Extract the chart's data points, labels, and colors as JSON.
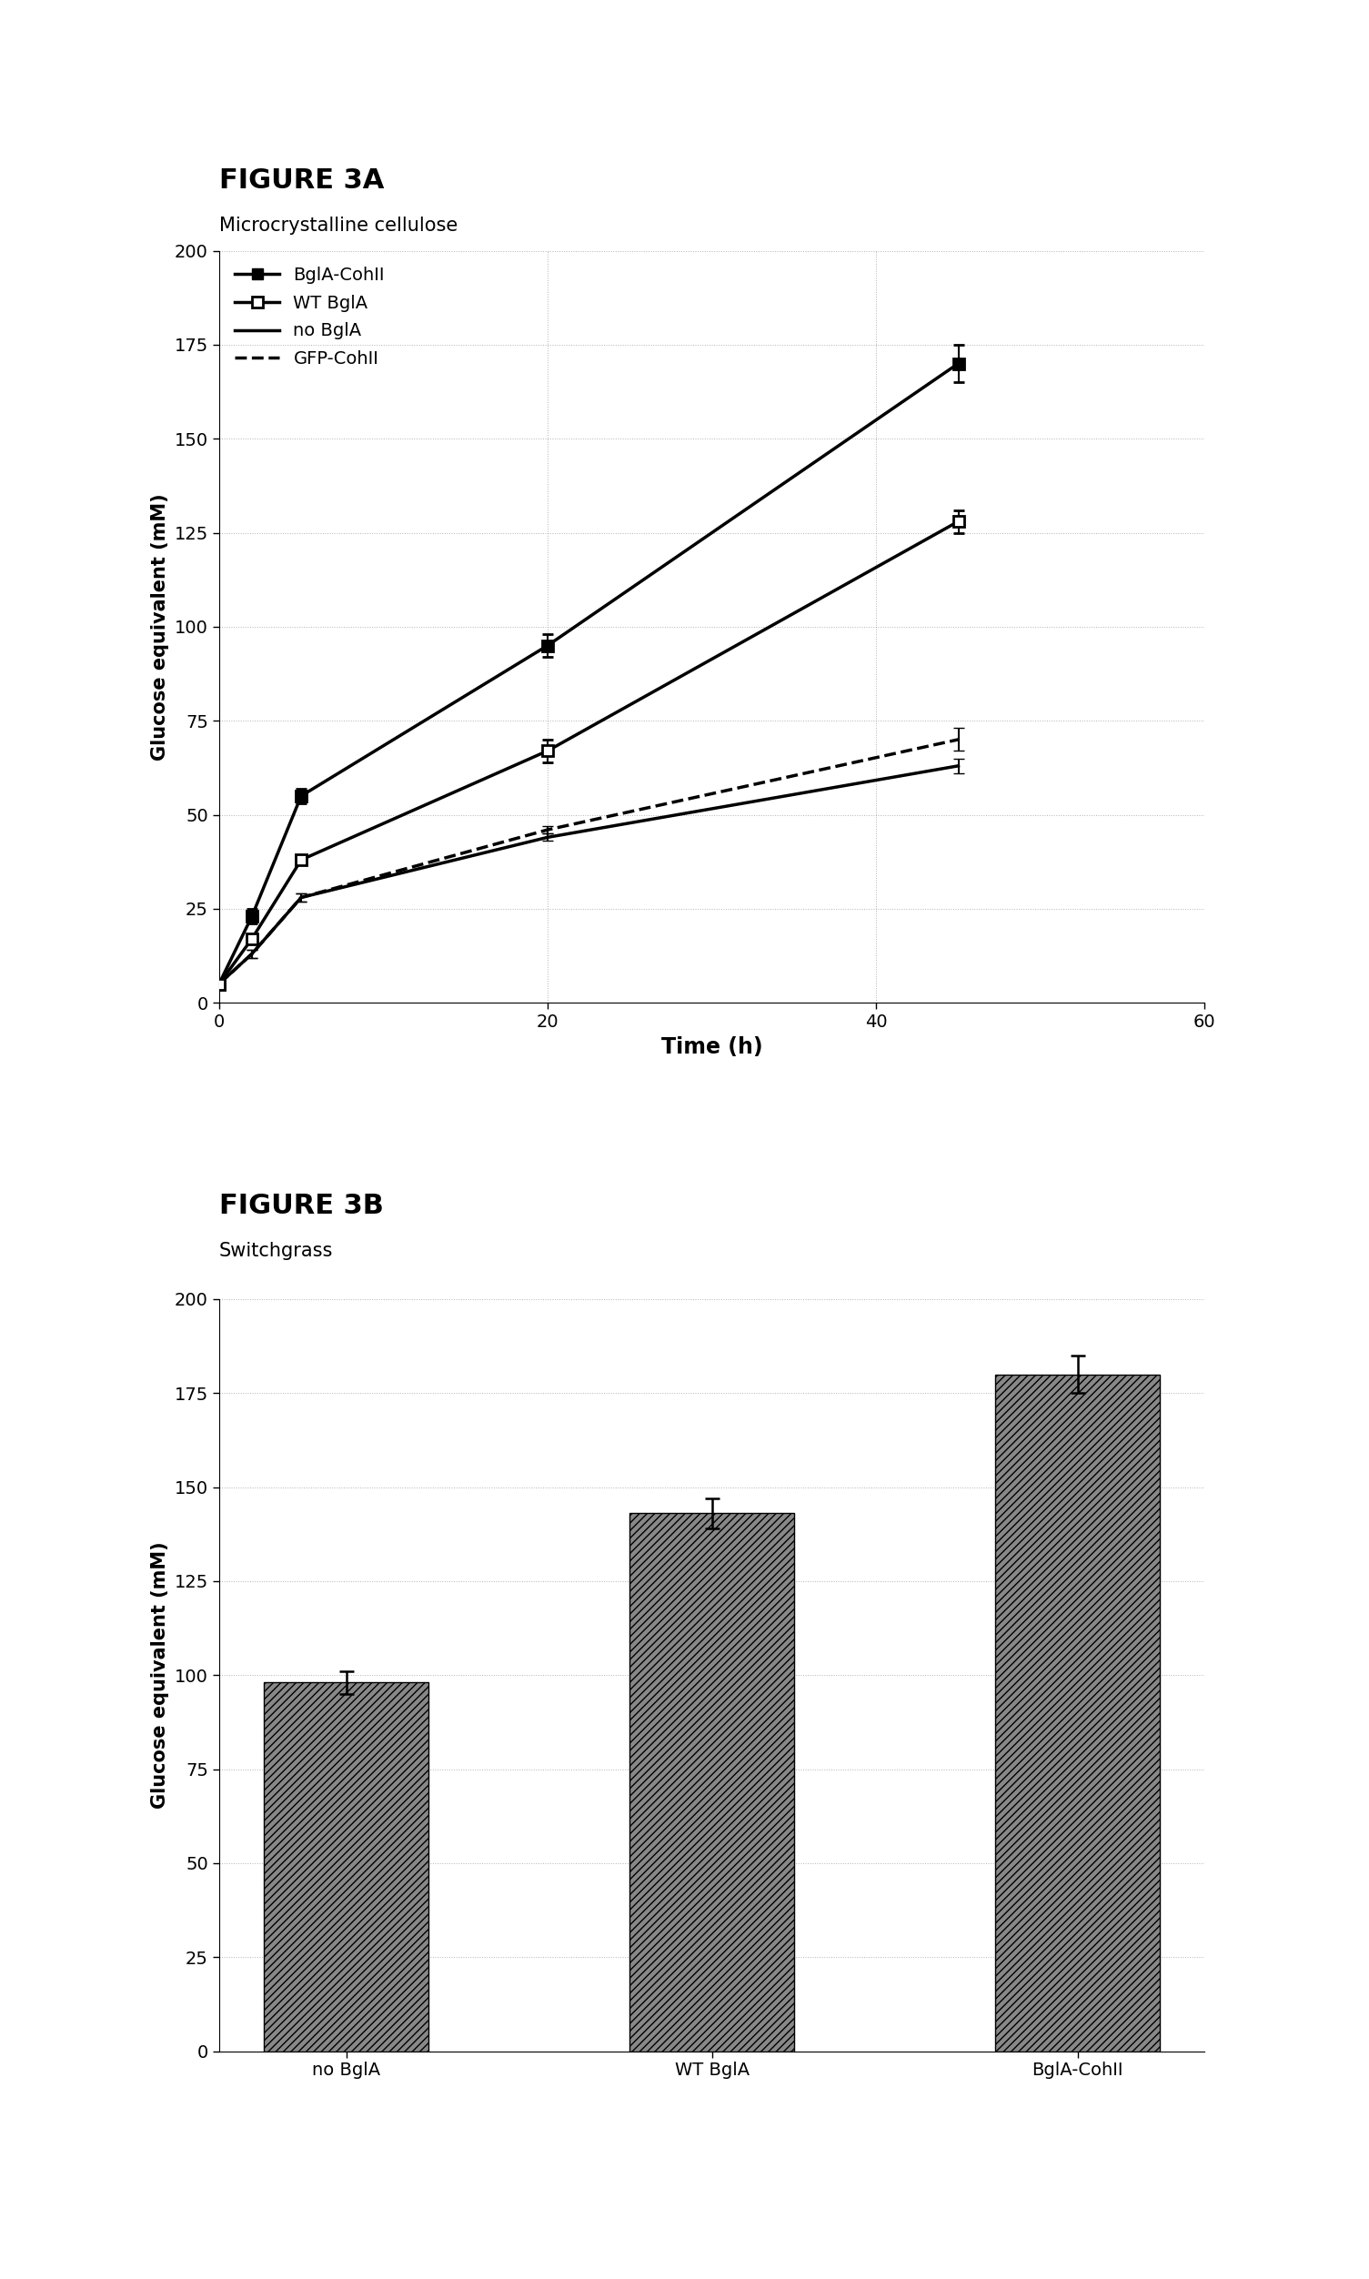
{
  "fig3a": {
    "title": "FIGURE 3A",
    "subtitle": "Microcrystalline cellulose",
    "xlabel": "Time (h)",
    "ylabel": "Glucose equivalent (mM)",
    "xlim": [
      0,
      60
    ],
    "ylim": [
      0,
      200
    ],
    "xticks": [
      0,
      20,
      40,
      60
    ],
    "yticks": [
      0,
      25,
      50,
      75,
      100,
      125,
      150,
      175,
      200
    ],
    "series": {
      "BglA-CohII": {
        "x": [
          0,
          2,
          5,
          20,
          45
        ],
        "y": [
          5,
          23,
          55,
          95,
          170
        ],
        "yerr": [
          0,
          2,
          2,
          3,
          5
        ],
        "marker": "s",
        "linestyle": "-",
        "color": "#000000",
        "filled": true,
        "linewidth": 2.5
      },
      "WT BglA": {
        "x": [
          0,
          2,
          5,
          20,
          45
        ],
        "y": [
          5,
          17,
          38,
          67,
          128
        ],
        "yerr": [
          0,
          1,
          1,
          3,
          3
        ],
        "marker": "s",
        "linestyle": "-",
        "color": "#000000",
        "filled": false,
        "linewidth": 2.5
      },
      "no BglA": {
        "x": [
          0,
          2,
          5,
          20,
          45
        ],
        "y": [
          5,
          13,
          28,
          44,
          63
        ],
        "yerr": [
          0,
          1,
          1,
          1,
          2
        ],
        "marker": null,
        "linestyle": "-",
        "color": "#000000",
        "filled": false,
        "linewidth": 2.5
      },
      "GFP-CohII": {
        "x": [
          0,
          2,
          5,
          20,
          45
        ],
        "y": [
          5,
          13,
          28,
          46,
          70
        ],
        "yerr": [
          0,
          1,
          1,
          1,
          3
        ],
        "marker": null,
        "linestyle": "--",
        "color": "#000000",
        "filled": false,
        "linewidth": 2.5
      }
    },
    "legend_entries": [
      {
        "label": "BglA-CohII",
        "marker": "s",
        "filled": true,
        "linestyle": "-"
      },
      {
        "label": "WT BglA",
        "marker": "s",
        "filled": false,
        "linestyle": "-"
      },
      {
        "label": "no BglA",
        "marker": null,
        "filled": false,
        "linestyle": "-"
      },
      {
        "label": "GFP-CohII",
        "marker": null,
        "filled": false,
        "linestyle": "--"
      }
    ]
  },
  "fig3b": {
    "title": "FIGURE 3B",
    "subtitle": "Switchgrass",
    "ylabel": "Glucose equivalent (mM)",
    "ylim": [
      0,
      200
    ],
    "yticks": [
      0,
      25,
      50,
      75,
      100,
      125,
      150,
      175,
      200
    ],
    "categories": [
      "no BglA",
      "WT BglA",
      "BglA-CohII"
    ],
    "values": [
      98,
      143,
      180
    ],
    "errors": [
      3,
      4,
      5
    ],
    "bar_color": "#888888",
    "bar_width": 0.45,
    "hatch": "////"
  }
}
